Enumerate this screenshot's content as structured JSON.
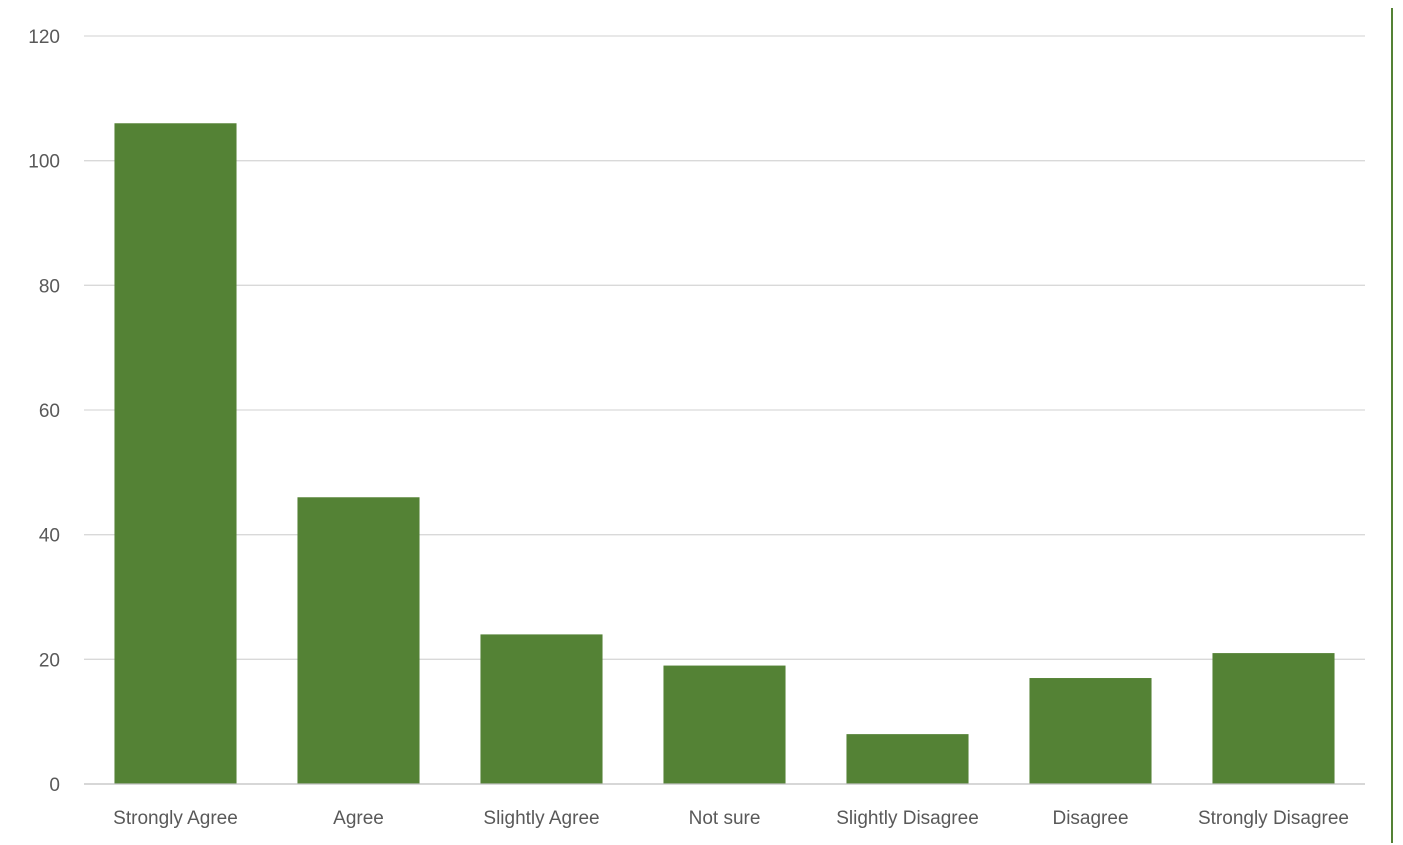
{
  "chart_data": {
    "type": "bar",
    "title": "",
    "xlabel": "",
    "ylabel": "",
    "categories": [
      "Strongly Agree",
      "Agree",
      "Slightly Agree",
      "Not sure",
      "Slightly Disagree",
      "Disagree",
      "Strongly Disagree"
    ],
    "values": [
      106,
      46,
      24,
      19,
      8,
      17,
      21
    ],
    "ylim": [
      0,
      120
    ],
    "yticks": [
      0,
      20,
      40,
      60,
      80,
      100,
      120
    ],
    "grid": true,
    "legend": "none",
    "bar_color": "#548235",
    "border_color": "#548235"
  }
}
